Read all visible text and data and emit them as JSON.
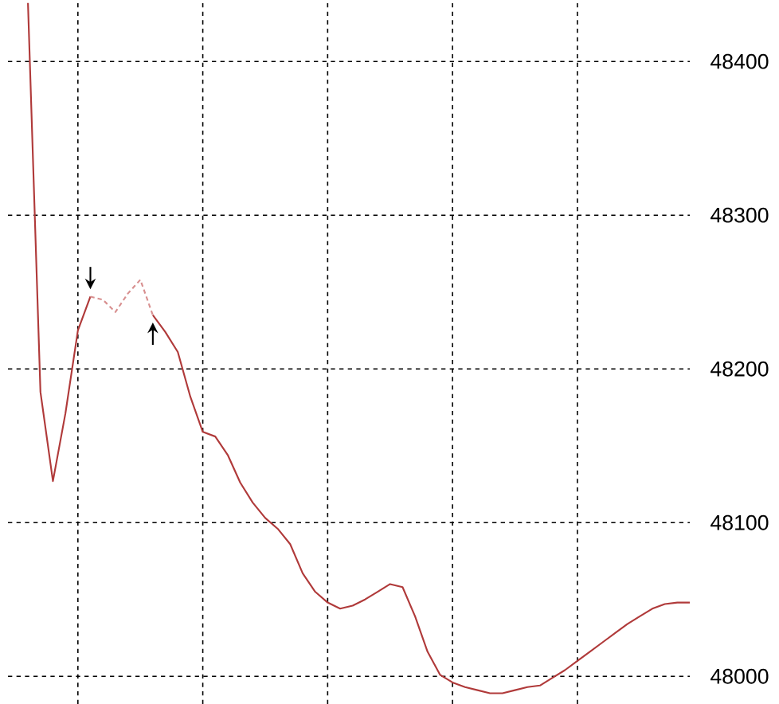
{
  "chart_data": {
    "type": "line",
    "categories": [
      null,
      null,
      null,
      null,
      null,
      null,
      null,
      null,
      null,
      null,
      null,
      null,
      null,
      null,
      null,
      null,
      null,
      null,
      null,
      null,
      null,
      null,
      null,
      null,
      null,
      null,
      null,
      null,
      null,
      null,
      null,
      null,
      null,
      null,
      null,
      null,
      null,
      null,
      null,
      null,
      null,
      null,
      null,
      null,
      null,
      null,
      null,
      null,
      null,
      null,
      null,
      null,
      null,
      null
    ],
    "series": [
      {
        "color": "#b03a3a",
        "line_style": "solid",
        "values": [
          48438,
          48185,
          48127,
          48171,
          48225,
          48247,
          null,
          null,
          null,
          null,
          null,
          null,
          null,
          null,
          null,
          null,
          null,
          null,
          null,
          null,
          null,
          null,
          null,
          null,
          null,
          null,
          null,
          null,
          null,
          null,
          null,
          null,
          null,
          null,
          null,
          null,
          null,
          null,
          null,
          null,
          null,
          null,
          null,
          null,
          null,
          null,
          null,
          null,
          null,
          null,
          null,
          null,
          null,
          null
        ]
      },
      {
        "color": "#b03a3a",
        "line_style": "solid",
        "values": [
          null,
          null,
          null,
          null,
          null,
          null,
          null,
          null,
          null,
          null,
          48235,
          48224,
          48211,
          48182,
          48159,
          48156,
          48144,
          48126,
          48113,
          48103,
          48096,
          48086,
          48067,
          48055,
          48048,
          48044,
          48046,
          48050,
          48055,
          48060,
          48058,
          48039,
          48016,
          48001,
          47996,
          47993,
          47991,
          47989,
          47989,
          47991,
          47993,
          47994,
          47999,
          48004,
          48010,
          48016,
          48022,
          48028,
          48034,
          48039,
          48044,
          48047,
          48048,
          48048
        ]
      },
      {
        "color": "#d89090",
        "line_style": "dashed",
        "values": [
          null,
          null,
          null,
          null,
          null,
          48247,
          48245,
          48237,
          48249,
          48258,
          48235,
          null,
          null,
          null,
          null,
          null,
          null,
          null,
          null,
          null,
          null,
          null,
          null,
          null,
          null,
          null,
          null,
          null,
          null,
          null,
          null,
          null,
          null,
          null,
          null,
          null,
          null,
          null,
          null,
          null,
          null,
          null,
          null,
          null,
          null,
          null,
          null,
          null,
          null,
          null,
          null,
          null,
          null,
          null
        ]
      }
    ],
    "ylim": [
      47982,
      48440
    ],
    "yticks": [
      48000,
      48100,
      48200,
      48300,
      48400
    ],
    "tick_labels": "y",
    "grid": true,
    "marker": "none"
  }
}
